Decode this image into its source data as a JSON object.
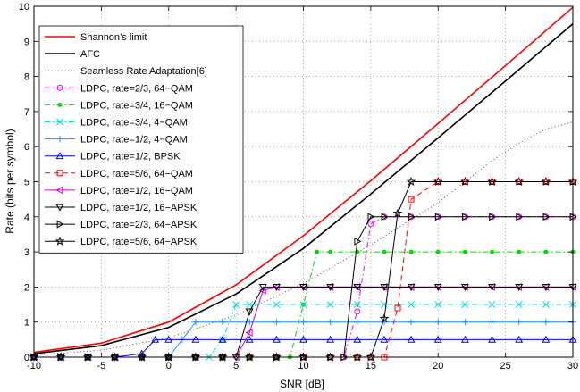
{
  "chart_data": {
    "type": "line",
    "title": "",
    "xlabel": "SNR [dB]",
    "ylabel": "Rate (bits per symbol)",
    "xlim": [
      -10,
      30
    ],
    "ylim": [
      0,
      10
    ],
    "xticks": [
      "-10",
      "-5",
      "0",
      "5",
      "10",
      "15",
      "20",
      "25",
      "30"
    ],
    "yticks": [
      "0",
      "1",
      "2",
      "3",
      "4",
      "5",
      "6",
      "7",
      "8",
      "9",
      "10"
    ],
    "grid": true,
    "legend_position": "top-left",
    "series": [
      {
        "name": "Shannon’s limit",
        "color": "#ff0000",
        "dash": "solid",
        "marker": "none",
        "x": [
          -10,
          -5,
          0,
          5,
          10,
          15,
          20,
          25,
          30
        ],
        "y": [
          0.14,
          0.4,
          1.0,
          2.06,
          3.46,
          5.03,
          6.66,
          8.31,
          9.97
        ]
      },
      {
        "name": "AFC",
        "color": "#000000",
        "dash": "solid",
        "marker": "none",
        "x": [
          -10,
          -5,
          0,
          5,
          10,
          15,
          20,
          25,
          30
        ],
        "y": [
          0.1,
          0.33,
          0.85,
          1.8,
          3.1,
          4.65,
          6.25,
          7.87,
          9.5
        ]
      },
      {
        "name": "Seamless Rate Adaptation[6]",
        "color": "#666666",
        "dash": "dotted",
        "marker": "none",
        "x": [
          -10,
          -5,
          0,
          5,
          10,
          15,
          20,
          22,
          24,
          26,
          28,
          30
        ],
        "y": [
          0.06,
          0.2,
          0.55,
          1.2,
          2.1,
          3.2,
          4.4,
          5.0,
          5.6,
          6.1,
          6.5,
          6.7
        ]
      },
      {
        "name": "LDPC, rate=2/3, 64−QAM",
        "color": "#ff00ff",
        "dash": "dashdot",
        "marker": "circle",
        "x": [
          -10,
          -8,
          -6,
          -4,
          -2,
          0,
          2,
          4,
          6,
          8,
          10,
          12,
          13,
          14,
          15,
          16,
          18,
          20,
          22,
          24,
          26,
          28,
          30
        ],
        "y": [
          0,
          0,
          0,
          0,
          0,
          0,
          0,
          0,
          0,
          0,
          0,
          0,
          0,
          1.3,
          3.8,
          4,
          4,
          4,
          4,
          4,
          4,
          4,
          4
        ]
      },
      {
        "name": "LDPC, rate=3/4, 16−QAM",
        "color": "#00dd00",
        "dash": "dashdot",
        "marker": "dot",
        "x": [
          -10,
          -8,
          -6,
          -4,
          -2,
          0,
          2,
          4,
          6,
          8,
          9,
          10,
          11,
          12,
          14,
          16,
          18,
          20,
          22,
          24,
          26,
          28,
          30
        ],
        "y": [
          0,
          0,
          0,
          0,
          0,
          0,
          0,
          0,
          0,
          0,
          0,
          1.5,
          3,
          3,
          3,
          3,
          3,
          3,
          3,
          3,
          3,
          3,
          3
        ]
      },
      {
        "name": "LDPC, rate=3/4, 4−QAM",
        "color": "#00e0e0",
        "dash": "dashdot",
        "marker": "x",
        "x": [
          -10,
          -8,
          -6,
          -4,
          -2,
          0,
          2,
          3,
          4,
          5,
          6,
          8,
          10,
          12,
          14,
          16,
          18,
          20,
          22,
          24,
          26,
          28,
          30
        ],
        "y": [
          0,
          0,
          0,
          0,
          0,
          0,
          0,
          0,
          0.5,
          1.5,
          1.5,
          1.5,
          1.5,
          1.5,
          1.5,
          1.5,
          1.5,
          1.5,
          1.5,
          1.5,
          1.5,
          1.5,
          1.5
        ]
      },
      {
        "name": "LDPC, rate=1/2, 4−QAM",
        "color": "#1e90ff",
        "dash": "solid",
        "marker": "plus",
        "x": [
          -10,
          -8,
          -6,
          -4,
          -2,
          0,
          1,
          2,
          4,
          6,
          8,
          10,
          12,
          14,
          16,
          18,
          20,
          22,
          24,
          26,
          28,
          30
        ],
        "y": [
          0,
          0,
          0,
          0,
          0,
          0,
          0.5,
          1,
          1,
          1,
          1,
          1,
          1,
          1,
          1,
          1,
          1,
          1,
          1,
          1,
          1,
          1
        ]
      },
      {
        "name": "LDPC, rate=1/2, BPSK",
        "color": "#0000ff",
        "dash": "solid",
        "marker": "triangle-up",
        "x": [
          -10,
          -8,
          -6,
          -4,
          -2,
          -1,
          0,
          2,
          4,
          6,
          8,
          10,
          12,
          14,
          16,
          18,
          20,
          22,
          24,
          26,
          28,
          30
        ],
        "y": [
          0,
          0,
          0,
          0,
          0.1,
          0.5,
          0.5,
          0.5,
          0.5,
          0.5,
          0.5,
          0.5,
          0.5,
          0.5,
          0.5,
          0.5,
          0.5,
          0.5,
          0.5,
          0.5,
          0.5,
          0.5
        ]
      },
      {
        "name": "LDPC, rate=5/6, 64−QAM",
        "color": "#ff0000",
        "dash": "dashed",
        "marker": "square",
        "x": [
          -10,
          -8,
          -6,
          -4,
          -2,
          0,
          2,
          4,
          6,
          8,
          10,
          12,
          14,
          15,
          16,
          17,
          18,
          20,
          22,
          24,
          26,
          28,
          30
        ],
        "y": [
          0,
          0,
          0,
          0,
          0,
          0,
          0,
          0,
          0,
          0,
          0,
          0,
          0,
          0,
          0,
          1.4,
          4.5,
          5,
          5,
          5,
          5,
          5,
          5
        ]
      },
      {
        "name": "LDPC, rate=1/2, 16−QAM",
        "color": "#cc00cc",
        "dash": "solid",
        "marker": "triangle-left",
        "x": [
          -10,
          -8,
          -6,
          -4,
          -2,
          0,
          2,
          4,
          5,
          6,
          7,
          8,
          10,
          12,
          14,
          16,
          18,
          20,
          22,
          24,
          26,
          28,
          30
        ],
        "y": [
          0,
          0,
          0,
          0,
          0,
          0,
          0,
          0,
          0,
          0.7,
          1.9,
          2,
          2,
          2,
          2,
          2,
          2,
          2,
          2,
          2,
          2,
          2,
          2
        ]
      },
      {
        "name": "LDPC, rate=1/2, 16−APSK",
        "color": "#000000",
        "dash": "solid",
        "marker": "triangle-down",
        "x": [
          -10,
          -8,
          -6,
          -4,
          -2,
          0,
          2,
          4,
          5,
          6,
          7,
          8,
          10,
          12,
          14,
          16,
          18,
          20,
          22,
          24,
          26,
          28,
          30
        ],
        "y": [
          0,
          0,
          0,
          0,
          0,
          0,
          0,
          0,
          0,
          1.3,
          2,
          2,
          2,
          2,
          2,
          2,
          2,
          2,
          2,
          2,
          2,
          2,
          2
        ]
      },
      {
        "name": "LDPC, rate=2/3, 64−APSK",
        "color": "#000000",
        "dash": "solid",
        "marker": "triangle-right",
        "x": [
          -10,
          -8,
          -6,
          -4,
          -2,
          0,
          2,
          4,
          6,
          8,
          10,
          12,
          13,
          14,
          15,
          16,
          18,
          20,
          22,
          24,
          26,
          28,
          30
        ],
        "y": [
          0,
          0,
          0,
          0,
          0,
          0,
          0,
          0,
          0,
          0,
          0,
          0,
          0,
          3.3,
          4,
          4,
          4,
          4,
          4,
          4,
          4,
          4,
          4
        ]
      },
      {
        "name": "LDPC, rate=5/6, 64−APSK",
        "color": "#000000",
        "dash": "solid",
        "marker": "star",
        "x": [
          -10,
          -8,
          -6,
          -4,
          -2,
          0,
          2,
          4,
          6,
          8,
          10,
          12,
          14,
          15,
          16,
          17,
          18,
          20,
          22,
          24,
          26,
          28,
          30
        ],
        "y": [
          0,
          0,
          0,
          0,
          0,
          0,
          0,
          0,
          0,
          0,
          0,
          0,
          0,
          0,
          1.1,
          4.1,
          5,
          5,
          5,
          5,
          5,
          5,
          5
        ]
      }
    ]
  }
}
